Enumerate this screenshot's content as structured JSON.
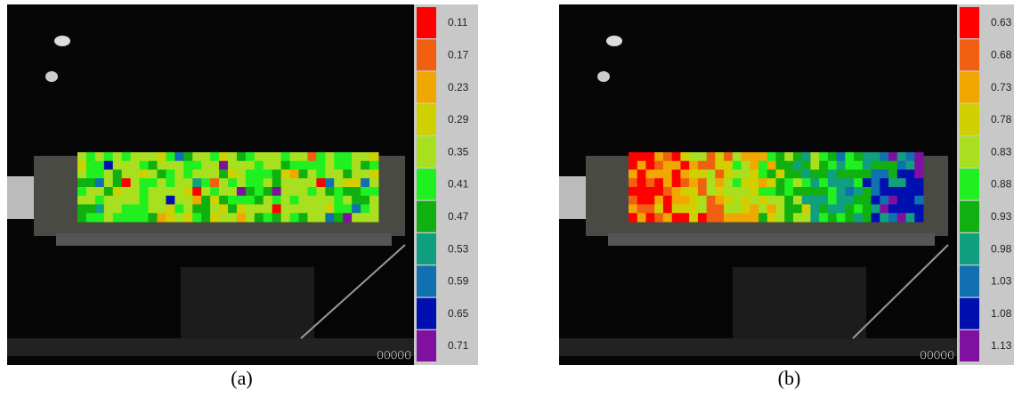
{
  "panels": [
    {
      "caption": "(a)",
      "counter": "00000",
      "legend": [
        {
          "label": "0.11",
          "color": "#ff0000"
        },
        {
          "label": "0.17",
          "color": "#f06010"
        },
        {
          "label": "0.23",
          "color": "#f0a800"
        },
        {
          "label": "0.29",
          "color": "#d0d000"
        },
        {
          "label": "0.35",
          "color": "#a8e020"
        },
        {
          "label": "0.41",
          "color": "#20f020"
        },
        {
          "label": "0.47",
          "color": "#10b010"
        },
        {
          "label": "0.53",
          "color": "#10a080"
        },
        {
          "label": "0.59",
          "color": "#1070b0"
        },
        {
          "label": "0.65",
          "color": "#0010b0"
        },
        {
          "label": "0.71",
          "color": "#8010a0"
        }
      ]
    },
    {
      "caption": "(b)",
      "counter": "00000",
      "legend": [
        {
          "label": "0.63",
          "color": "#ff0000"
        },
        {
          "label": "0.68",
          "color": "#f06010"
        },
        {
          "label": "0.73",
          "color": "#f0a800"
        },
        {
          "label": "0.78",
          "color": "#d0d000"
        },
        {
          "label": "0.83",
          "color": "#a8e020"
        },
        {
          "label": "0.88",
          "color": "#20f020"
        },
        {
          "label": "0.93",
          "color": "#10b010"
        },
        {
          "label": "0.98",
          "color": "#10a080"
        },
        {
          "label": "1.03",
          "color": "#1070b0"
        },
        {
          "label": "1.08",
          "color": "#0010b0"
        },
        {
          "label": "1.13",
          "color": "#8010a0"
        }
      ]
    }
  ]
}
